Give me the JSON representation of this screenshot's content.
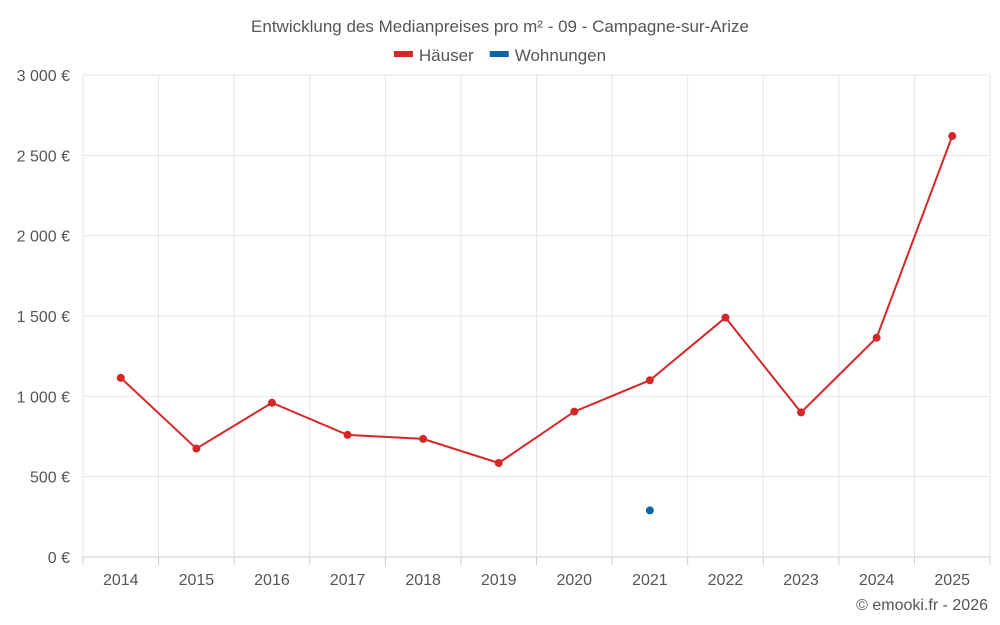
{
  "chart_data": {
    "type": "line",
    "title": "Entwicklung des Medianpreises pro m² - 09 - Campagne-sur-Arize",
    "categories": [
      "2014",
      "2015",
      "2016",
      "2017",
      "2018",
      "2019",
      "2020",
      "2021",
      "2022",
      "2023",
      "2024",
      "2025"
    ],
    "series": [
      {
        "name": "Häuser",
        "color": "#d62728",
        "values": [
          1115,
          675,
          960,
          760,
          735,
          585,
          905,
          1100,
          1490,
          900,
          1365,
          2620
        ]
      },
      {
        "name": "Wohnungen",
        "color": "#0a66a8",
        "values": [
          null,
          null,
          null,
          null,
          null,
          null,
          null,
          290,
          null,
          null,
          null,
          null
        ]
      }
    ],
    "ylim": [
      0,
      3000
    ],
    "yticks": [
      0,
      500,
      1000,
      1500,
      2000,
      2500,
      3000
    ],
    "ytick_labels": [
      "0 €",
      "500 €",
      "1 000 €",
      "1 500 €",
      "2 000 €",
      "2 500 €",
      "3 000 €"
    ],
    "xlabel": "",
    "ylabel": "",
    "grid": true,
    "legend_position": "top-center"
  },
  "copyright": "© emooki.fr - 2026"
}
